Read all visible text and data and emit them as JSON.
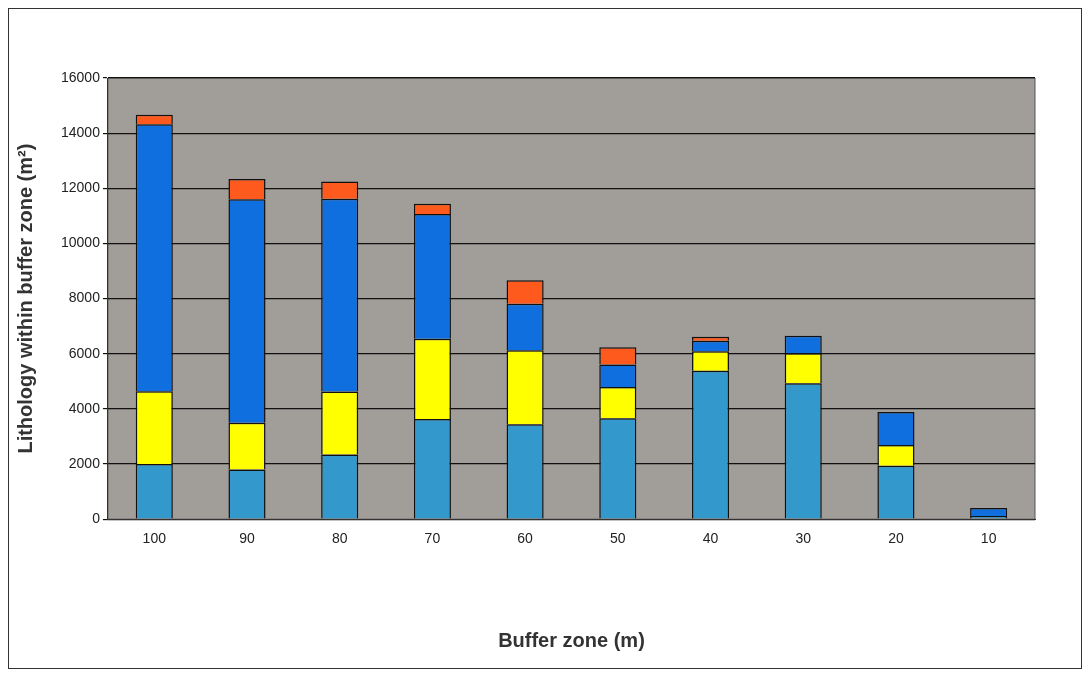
{
  "chart_data": {
    "type": "bar",
    "stacked": true,
    "xlabel": "Buffer zone (m)",
    "ylabel": "Lithology within buffer zone (m²)",
    "categories": [
      "100",
      "90",
      "80",
      "70",
      "60",
      "50",
      "40",
      "30",
      "20",
      "10"
    ],
    "series": [
      {
        "color": "#3399cc",
        "values": [
          2000,
          1800,
          2350,
          3630,
          3440,
          3660,
          5380,
          4930,
          1940,
          120
        ]
      },
      {
        "color": "#ffff00",
        "values": [
          2640,
          1700,
          2280,
          2910,
          2690,
          1130,
          710,
          1090,
          750,
          0
        ]
      },
      {
        "color": "#0f6fdf",
        "values": [
          9680,
          8100,
          6990,
          4530,
          1680,
          820,
          380,
          630,
          1200,
          290
        ]
      },
      {
        "color": "#ff5a1e",
        "values": [
          350,
          740,
          630,
          370,
          860,
          630,
          150,
          0,
          0,
          0
        ]
      }
    ],
    "ylim": [
      0,
      16000
    ],
    "yticks": [
      0,
      2000,
      4000,
      6000,
      8000,
      10000,
      12000,
      14000,
      16000
    ],
    "grid": "y",
    "legend": false
  }
}
